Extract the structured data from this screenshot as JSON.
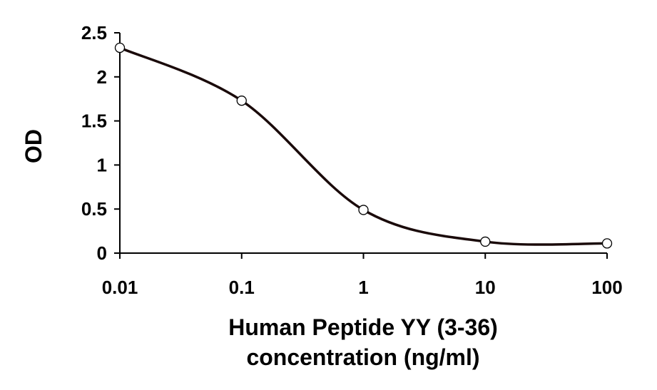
{
  "chart_data": {
    "type": "line",
    "x_scale": "log",
    "x": [
      0.01,
      0.1,
      1,
      10,
      100
    ],
    "x_tick_labels": [
      "0.01",
      "0.1",
      "1",
      "10",
      "100"
    ],
    "series": [
      {
        "values": [
          2.33,
          1.73,
          0.49,
          0.13,
          0.11
        ]
      }
    ],
    "xlabel_line1": "Human Peptide YY (3-36)",
    "xlabel_line2": "concentration (ng/ml)",
    "ylabel": "OD",
    "ylim": [
      0,
      2.5
    ],
    "y_ticks": [
      0,
      0.5,
      1,
      1.5,
      2,
      2.5
    ],
    "y_tick_labels": [
      "0",
      "0.5",
      "1",
      "1.5",
      "2",
      "2.5"
    ],
    "grid": false,
    "legend": "none",
    "colors": {
      "line": "#1a0a0a",
      "marker_fill": "#ffffff",
      "marker_stroke": "#000000"
    }
  }
}
